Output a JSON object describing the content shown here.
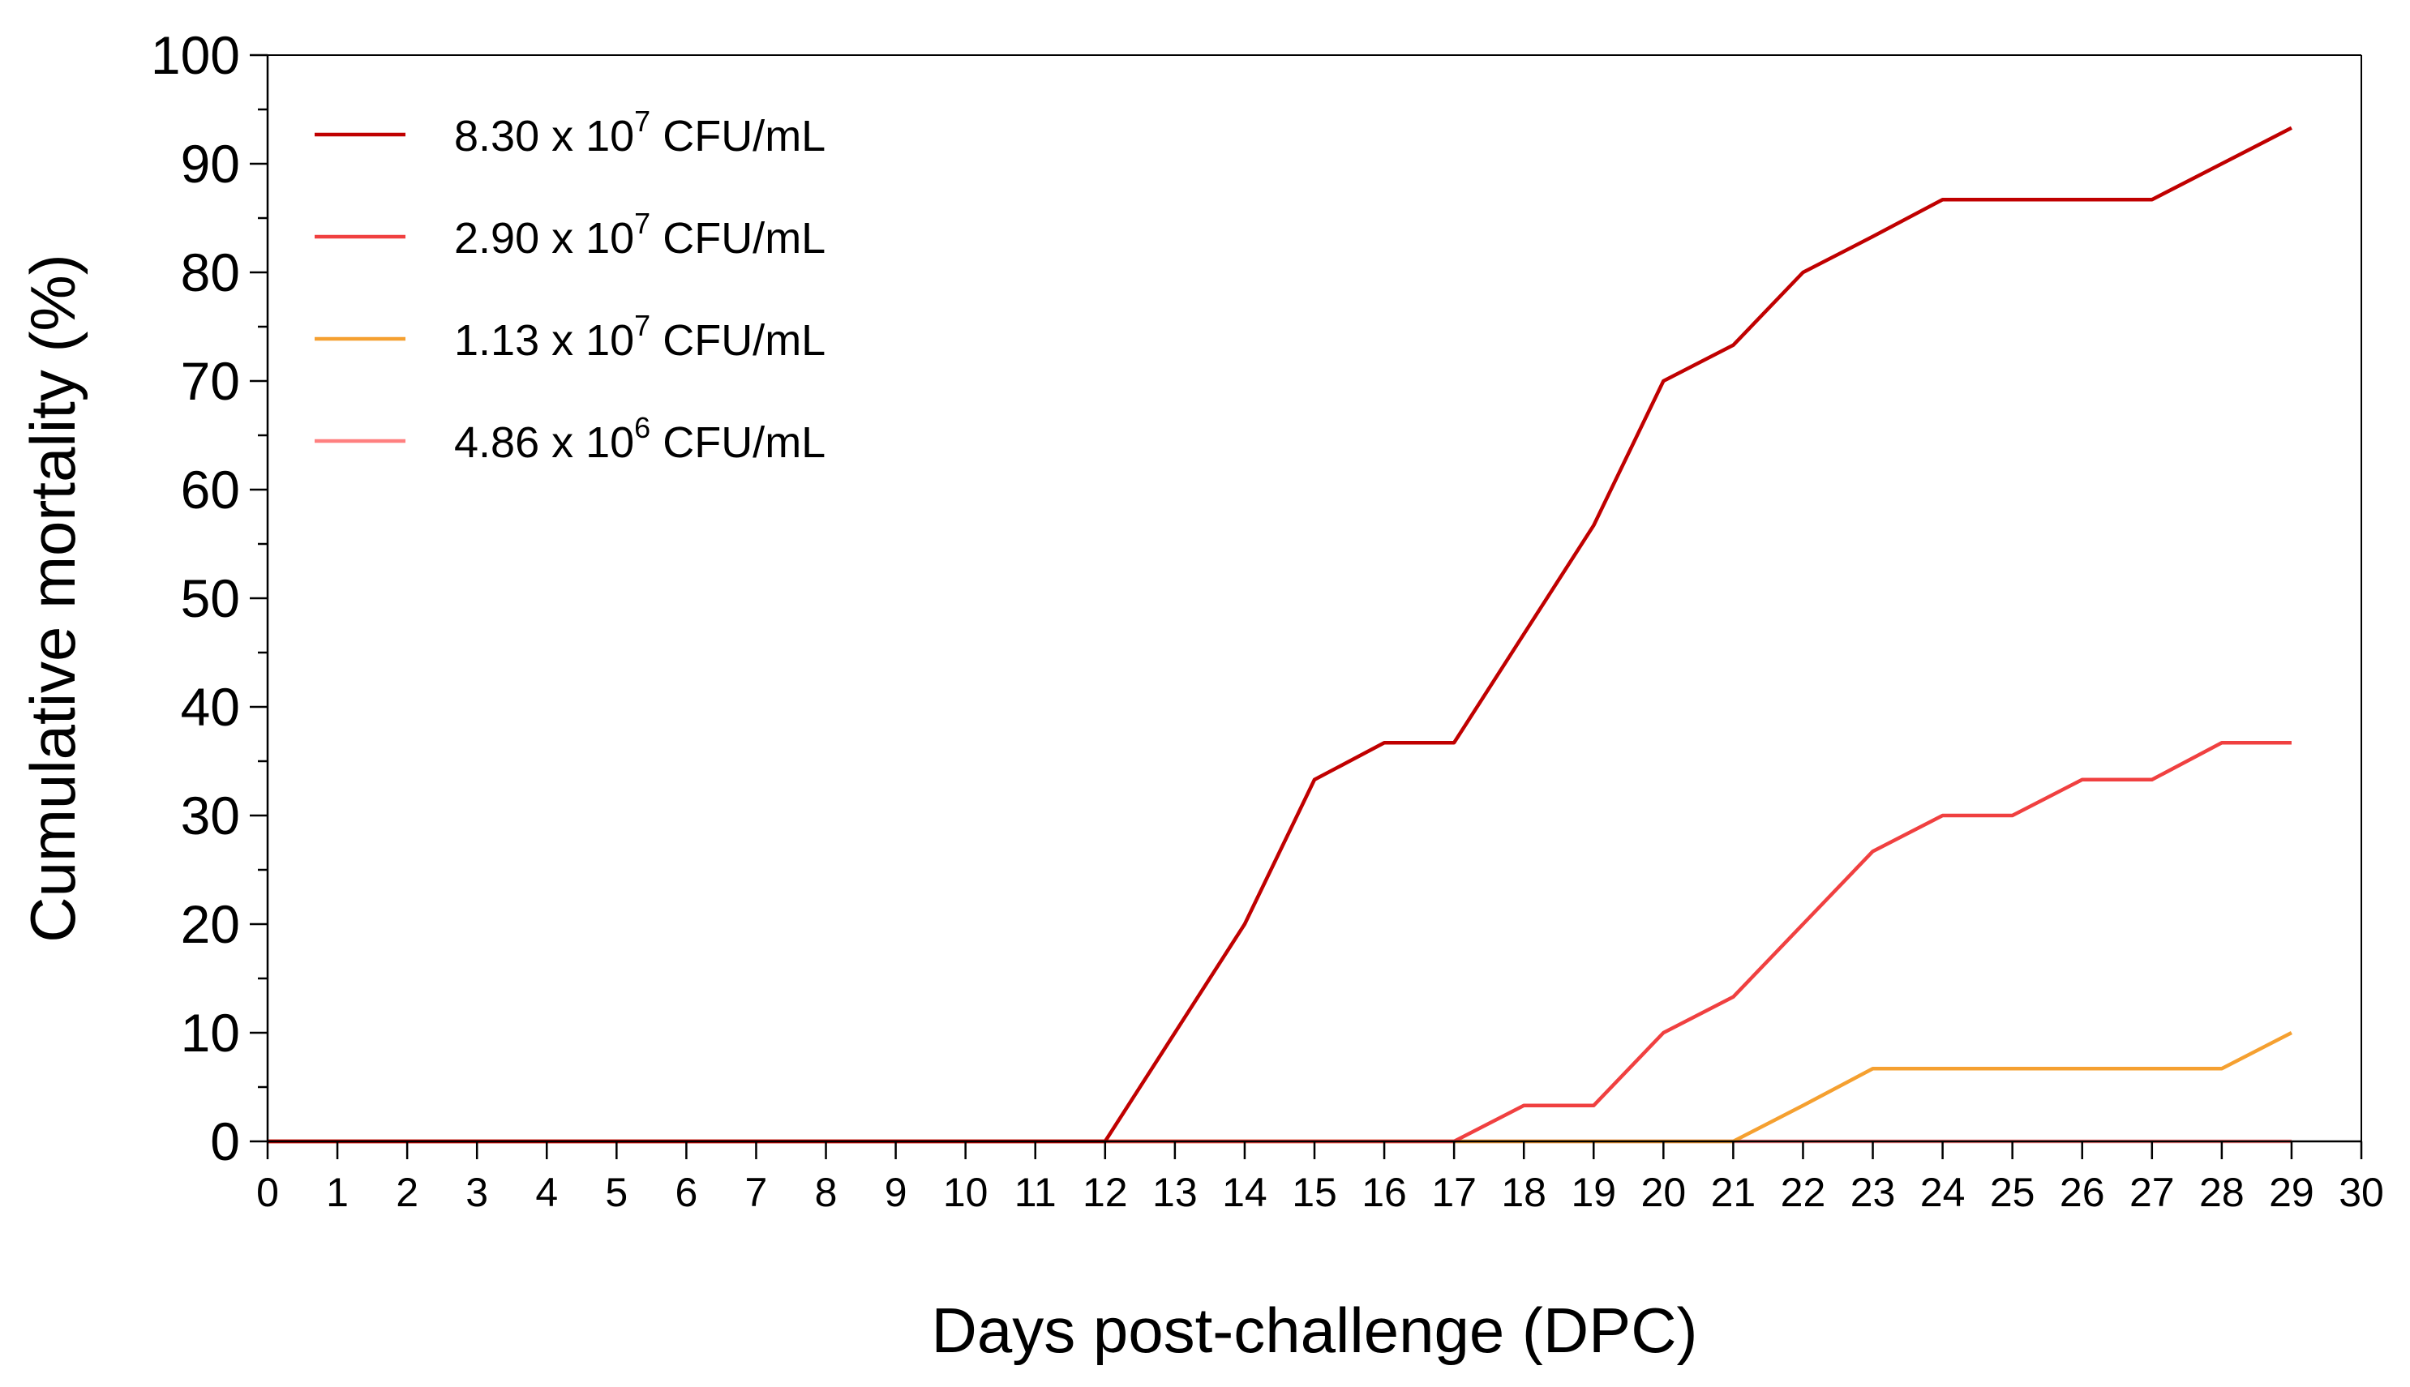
{
  "chart_data": {
    "type": "line",
    "xlabel": "Days post-challenge (DPC)",
    "ylabel": "Cumulative mortality (%)",
    "xlim": [
      0,
      30
    ],
    "ylim": [
      0,
      100
    ],
    "x_ticks": [
      0,
      1,
      2,
      3,
      4,
      5,
      6,
      7,
      8,
      9,
      10,
      11,
      12,
      13,
      14,
      15,
      16,
      17,
      18,
      19,
      20,
      21,
      22,
      23,
      24,
      25,
      26,
      27,
      28,
      29,
      30
    ],
    "y_ticks": [
      0,
      10,
      20,
      30,
      40,
      50,
      60,
      70,
      80,
      90,
      100
    ],
    "grid": false,
    "legend_position": "top-left",
    "x": [
      0,
      1,
      2,
      3,
      4,
      5,
      6,
      7,
      8,
      9,
      10,
      11,
      12,
      13,
      14,
      15,
      16,
      17,
      18,
      19,
      20,
      21,
      22,
      23,
      24,
      25,
      26,
      27,
      28,
      29
    ],
    "series": [
      {
        "name_base": "8.30 x 10",
        "name_exp": "7",
        "name_unit": " CFU/mL",
        "color": "#C00000",
        "values": [
          0,
          0,
          0,
          0,
          0,
          0,
          0,
          0,
          0,
          0,
          0,
          0,
          0,
          10,
          20,
          33.3,
          36.7,
          36.7,
          46.7,
          56.7,
          70,
          73.3,
          80,
          83.3,
          86.7,
          86.7,
          86.7,
          86.7,
          90,
          93.3
        ]
      },
      {
        "name_base": "2.90 x 10",
        "name_exp": "7",
        "name_unit": " CFU/mL",
        "color": "#F04040",
        "values": [
          0,
          0,
          0,
          0,
          0,
          0,
          0,
          0,
          0,
          0,
          0,
          0,
          0,
          0,
          0,
          0,
          0,
          0,
          3.3,
          3.3,
          10,
          13.3,
          20,
          26.7,
          30,
          30,
          33.3,
          33.3,
          36.7,
          36.7
        ]
      },
      {
        "name_base": "1.13 x 10",
        "name_exp": "7",
        "name_unit": " CFU/mL",
        "color": "#F5A030",
        "values": [
          0,
          0,
          0,
          0,
          0,
          0,
          0,
          0,
          0,
          0,
          0,
          0,
          0,
          0,
          0,
          0,
          0,
          0,
          0,
          0,
          0,
          0,
          3.3,
          6.7,
          6.7,
          6.7,
          6.7,
          6.7,
          6.7,
          10
        ]
      },
      {
        "name_base": "4.86 x 10",
        "name_exp": "6",
        "name_unit": " CFU/mL",
        "color": "#FF8080",
        "values": [
          0,
          0,
          0,
          0,
          0,
          0,
          0,
          0,
          0,
          0,
          0,
          0,
          0,
          0,
          0,
          0,
          0,
          0,
          0,
          0,
          0,
          0,
          0,
          0,
          0,
          0,
          0,
          0,
          0,
          0
        ]
      }
    ]
  }
}
